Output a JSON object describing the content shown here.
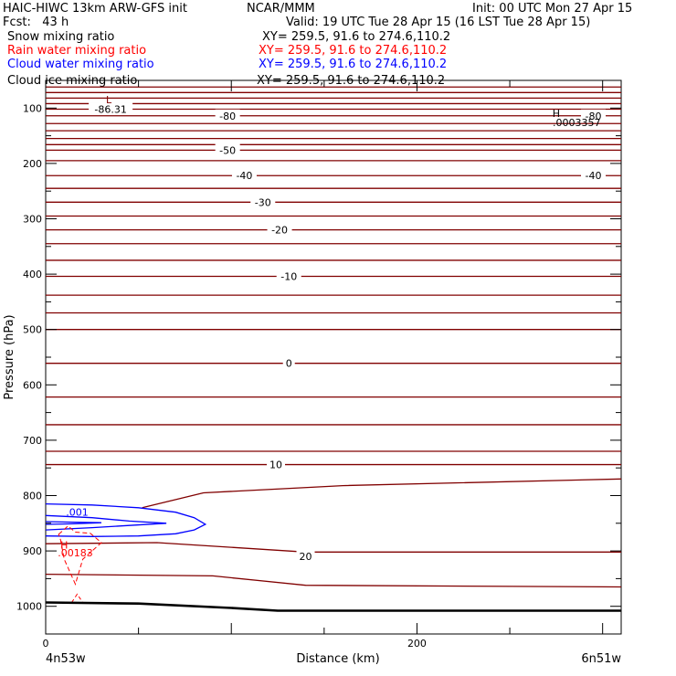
{
  "header": {
    "model_title": "HAIC-HIWC 13km ARW-GFS init",
    "org": "NCAR/MMM",
    "init": "Init: 00 UTC Mon 27 Apr 15",
    "fcst": "Fcst:   43 h",
    "valid": "Valid: 19 UTC Tue 28 Apr 15 (16 LST Tue 28 Apr 15)"
  },
  "legend": [
    {
      "name": "Snow mixing ratio",
      "xy": "XY= 259.5, 91.6 to 274.6,110.2",
      "color": "#000000"
    },
    {
      "name": "Rain water mixing ratio",
      "xy": "XY= 259.5, 91.6 to 274.6,110.2",
      "color": "#ff0000"
    },
    {
      "name": "Cloud water mixing ratio",
      "xy": "XY= 259.5, 91.6 to 274.6,110.2",
      "color": "#0000ff"
    },
    {
      "name": "Cloud ice mixing ratio",
      "xy": "XY= 259.5, 91.6 to 274.6,110.2",
      "color": "#000000"
    }
  ],
  "colors": {
    "temperature": "#800000",
    "cloud_water": "#0000ff",
    "rain_water": "#ff0000",
    "ground": "#000000"
  },
  "chart_data": {
    "type": "line",
    "title": "",
    "xlabel": "Distance (km)",
    "ylabel": "Pressure (hPa)",
    "xlim": [
      0,
      310
    ],
    "ylim": [
      50,
      1050
    ],
    "y_reversed": true,
    "x_ticks": [
      0,
      200
    ],
    "y_ticks": [
      100,
      200,
      300,
      400,
      500,
      600,
      700,
      800,
      900,
      1000
    ],
    "x_endpoints": {
      "left": "4n53w",
      "right": "6n51w"
    },
    "temperature_contour_labels": [
      {
        "text": "-86.31",
        "x": 35,
        "p": 102
      },
      {
        "text": "-80",
        "x": 98,
        "p": 114
      },
      {
        "text": "-80",
        "x": 295,
        "p": 114
      },
      {
        "text": "-50",
        "x": 98,
        "p": 176
      },
      {
        "text": "-40",
        "x": 107,
        "p": 222
      },
      {
        "text": "-40",
        "x": 295,
        "p": 222
      },
      {
        "text": "-30",
        "x": 117,
        "p": 270
      },
      {
        "text": "-20",
        "x": 126,
        "p": 320
      },
      {
        "text": "-10",
        "x": 131,
        "p": 404
      },
      {
        "text": "0",
        "x": 131,
        "p": 561
      },
      {
        "text": "10",
        "x": 124,
        "p": 744
      },
      {
        "text": "20",
        "x": 140,
        "p": 910
      }
    ],
    "extrema_labels": [
      {
        "text": "L",
        "x": 34,
        "p": 85,
        "color": "#800000"
      },
      {
        "text": "H",
        "x": 275,
        "p": 109,
        "color": "#000000"
      },
      {
        "text": ".0003357",
        "x": 286,
        "p": 126,
        "color": "#000000"
      },
      {
        "text": ".001",
        "x": 17,
        "p": 830,
        "color": "#0000ff"
      },
      {
        "text": "H",
        "x": 10,
        "p": 889,
        "color": "#ff0000"
      },
      {
        "text": ".00183",
        "x": 16,
        "p": 903,
        "color": "#ff0000"
      }
    ],
    "isotherm_pressures": [
      62,
      72,
      82,
      92,
      102,
      114,
      128,
      141,
      155,
      166,
      176,
      195,
      222,
      245,
      270,
      295,
      320,
      345,
      375,
      404,
      438,
      470,
      500,
      561,
      622,
      672,
      720,
      744
    ],
    "sloping_isotherms": [
      {
        "points": [
          [
            52,
            822
          ],
          [
            85,
            795
          ],
          [
            160,
            782
          ],
          [
            310,
            770
          ]
        ]
      },
      {
        "points": [
          [
            0,
            887
          ],
          [
            60,
            885
          ],
          [
            140,
            902
          ],
          [
            310,
            902
          ]
        ]
      },
      {
        "points": [
          [
            0,
            942
          ],
          [
            90,
            945
          ],
          [
            140,
            962
          ],
          [
            310,
            965
          ]
        ]
      }
    ],
    "cloud_water_contours": [
      {
        "level": ".001",
        "points": [
          [
            0,
            815
          ],
          [
            25,
            817
          ],
          [
            50,
            822
          ],
          [
            70,
            830
          ],
          [
            80,
            840
          ],
          [
            86,
            852
          ],
          [
            80,
            862
          ],
          [
            70,
            869
          ],
          [
            50,
            873
          ],
          [
            25,
            874
          ],
          [
            0,
            873
          ]
        ]
      },
      {
        "level": ".001",
        "points": [
          [
            0,
            836
          ],
          [
            25,
            840
          ],
          [
            45,
            846
          ],
          [
            65,
            850
          ],
          [
            45,
            854
          ],
          [
            25,
            858
          ],
          [
            0,
            862
          ]
        ]
      },
      {
        "level": ".001",
        "points": [
          [
            0,
            847
          ],
          [
            15,
            848
          ],
          [
            30,
            849
          ],
          [
            15,
            851
          ],
          [
            0,
            852
          ]
        ]
      }
    ],
    "rain_water_contour": {
      "level": ".00183",
      "dashed": true,
      "points": [
        [
          7,
          870
        ],
        [
          12,
          855
        ],
        [
          16,
          866
        ],
        [
          24,
          868
        ],
        [
          30,
          885
        ],
        [
          20,
          915
        ],
        [
          16,
          960
        ],
        [
          10,
          915
        ],
        [
          8,
          880
        ]
      ]
    },
    "rain_water_stub": {
      "points": [
        [
          14,
          993
        ],
        [
          17,
          978
        ],
        [
          20,
          993
        ]
      ]
    },
    "ground_pressure": [
      [
        0,
        993
      ],
      [
        50,
        995
      ],
      [
        100,
        1003
      ],
      [
        125,
        1008
      ],
      [
        310,
        1008
      ]
    ]
  }
}
